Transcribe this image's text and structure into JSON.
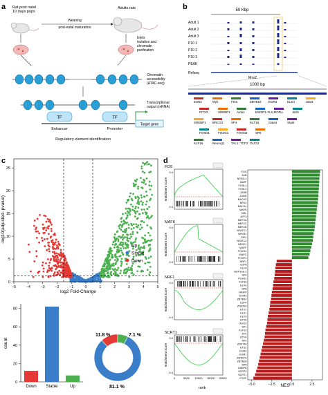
{
  "panels": {
    "a": "a",
    "b": "b",
    "c": "c",
    "d": "d"
  },
  "panel_a": {
    "rat_label": "Rat post natal\n10 days pups",
    "adult_label": "Adults rats",
    "weaning": "Weaning",
    "maturation": "post-natal maturation",
    "islets": "Islets\nisolation and\nchromatin\npurification",
    "chromatin": "Chromatin\naccessibility\n(ATAC-seq)",
    "transcriptional": "Transcriptional\noutput (mRNA)",
    "tf1": "TF",
    "tf2": "TF",
    "enhancer": "Enhancer",
    "promoter": "Promoter",
    "target_gene": "Target gene",
    "regulatory": "Regulatory element identification",
    "colors": {
      "tf": "#bfe4f7",
      "nucleosome": "#2a9fd6",
      "target": "#3aa0d8",
      "arrow": "#2f9e44"
    }
  },
  "panel_b": {
    "scale_top": "50 Kbp",
    "tracks": [
      "Adult 1",
      "Adult 2",
      "Adult 3",
      "P10 1",
      "P10 2",
      "P10 3",
      "PEAK"
    ],
    "refseq": "Refseq",
    "gene": "Mrs2",
    "scale_zoom": "1000 bp",
    "motifs": [
      "ESR2",
      "Myb",
      "FOS",
      "ZBTB18",
      "EGR3",
      "ELK4",
      "Stat4",
      "PITX3",
      "SREBP1",
      "Atoh1",
      "EWSR1-FLI1",
      "RORA",
      "Bcl6",
      "SREBP1",
      "BRCG2",
      "SP4",
      "KLF16",
      "Gata4",
      "Stat4",
      "FOXD1",
      "FOXG1",
      "FOXO3",
      "SP6",
      "KLF16",
      "Neurog1",
      "TAL1::TCF3",
      "OLIG3"
    ]
  },
  "panel_c": {
    "volcano": {
      "ylabel": "-log10(adjusted- pvalue)",
      "xlabel": "log2 Fold-Change",
      "x_ticks": [
        "−5",
        "−4",
        "−3",
        "−2",
        "−1",
        "0",
        "1",
        "2",
        "3",
        "4",
        "5"
      ],
      "y_ticks": [
        "0",
        "5",
        "10",
        "15",
        "20",
        "25"
      ],
      "legend": [
        "Up",
        "Stable",
        "Down"
      ],
      "colors": {
        "up": "#4caf50",
        "stable": "#3a7dc9",
        "down": "#e53935"
      }
    },
    "bar": {
      "ylabel": "count",
      "y_ticks": [
        "0",
        "20",
        "40",
        "60",
        "80"
      ],
      "categories": [
        "Down",
        "Stable",
        "Up"
      ]
    },
    "donut": {
      "labels": [
        "11.8 %",
        "7.1 %",
        "81.1 %"
      ]
    }
  },
  "panel_d": {
    "gsea": [
      {
        "name": "FOS"
      },
      {
        "name": "MAFK"
      },
      {
        "name": "NRF1"
      },
      {
        "name": "SCRT1"
      }
    ],
    "gsea_ylabel": "enrichment score",
    "gsea_xlabel": "rank",
    "gsea_x_ticks": [
      "0",
      "5000",
      "10000",
      "15000",
      "20000"
    ],
    "nes_xlabel": "NES",
    "nes_x_ticks": [
      "−5.0",
      "−2.5",
      "0.0",
      "2.5"
    ],
    "nes_tfs": [
      "FOS",
      "JUN",
      "NFE2L2",
      "BATF",
      "FOSL1",
      "FOSL2",
      "JUNB",
      "JUND",
      "BACH2",
      "NFE2",
      "BACH1",
      "MAFK",
      "NRL",
      "ATF3",
      "MEF2A",
      "MEF2C",
      "MEF2D",
      "NFATC1",
      "NFKB1",
      "SPI1",
      "NFATC2",
      "NR3C1",
      "MAFF",
      "FOXO1",
      "MAFG",
      "FOXP1",
      "NRF1",
      "E2F6",
      "KLF4",
      "MZF1var.2",
      "SP4",
      "PLAG1",
      "KLF16",
      "ELK4",
      "SP8",
      "HINFP",
      "EGR3",
      "ZBTB14",
      "E2F4",
      "ZNF263",
      "ETV1",
      "ELK1",
      "ELK3",
      "ETV6",
      "OLIG3",
      "SP1",
      "KLF13",
      "ZFX",
      "ETV4",
      "SP2",
      "ZNF740",
      "ETS1",
      "EGR2",
      "EGR1",
      "ZBTB7A",
      "ZBTB18",
      "SP6",
      "GABPA",
      "SCRT2",
      "SCRT1",
      "CTCF"
    ],
    "nes_chart": {
      "type": "bar",
      "orientation": "horizontal",
      "xlabel": "NES",
      "xlim": [
        -5.5,
        3.8
      ],
      "positive_count": 26,
      "values": [
        3.5,
        3.45,
        3.42,
        3.4,
        3.38,
        3.35,
        3.32,
        3.3,
        3.25,
        3.2,
        3.15,
        3.1,
        3.05,
        3.0,
        2.95,
        2.9,
        2.85,
        2.8,
        2.7,
        2.65,
        2.6,
        2.5,
        2.4,
        2.3,
        2.2,
        2.05,
        -1.9,
        -2.0,
        -2.05,
        -2.1,
        -2.15,
        -2.2,
        -2.3,
        -2.35,
        -2.4,
        -2.5,
        -2.55,
        -2.6,
        -2.7,
        -2.75,
        -2.8,
        -2.9,
        -3.0,
        -3.05,
        -3.1,
        -3.2,
        -3.3,
        -3.35,
        -3.4,
        -3.5,
        -3.6,
        -3.7,
        -3.8,
        -3.9,
        -4.0,
        -4.1,
        -4.2,
        -4.3,
        -4.45,
        -4.6,
        -4.8
      ],
      "colors": {
        "positive": "#2e8b2e",
        "negative": "#b71c1c"
      }
    }
  },
  "chart_data": [
    {
      "type": "bar",
      "categories": [
        "Down",
        "Stable",
        "Up"
      ],
      "values": [
        12,
        82,
        7
      ],
      "ylabel": "count",
      "ylim": [
        0,
        85
      ],
      "colors": [
        "#e53935",
        "#3a7dc9",
        "#4caf50"
      ]
    },
    {
      "type": "pie",
      "labels": [
        "Down",
        "Up",
        "Stable"
      ],
      "values": [
        11.8,
        7.1,
        81.1
      ],
      "colors": [
        "#e53935",
        "#4caf50",
        "#3a7dc9"
      ]
    },
    {
      "type": "scatter",
      "xlabel": "log2 Fold-Change",
      "ylabel": "-log10(adjusted- pvalue)",
      "xlim": [
        -5,
        5
      ],
      "ylim": [
        0,
        27
      ],
      "series": [
        {
          "name": "Up"
        },
        {
          "name": "Stable"
        },
        {
          "name": "Down"
        }
      ]
    }
  ]
}
